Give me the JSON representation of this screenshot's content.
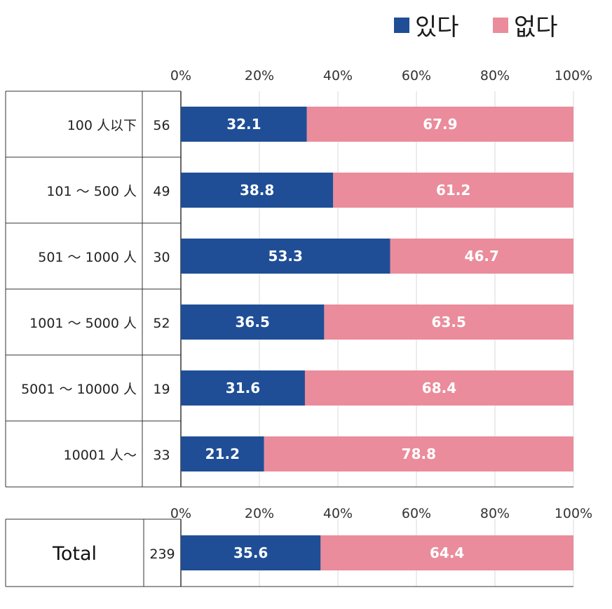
{
  "chart_data": [
    {
      "type": "bar",
      "orientation": "horizontal",
      "stacked": true,
      "legend": [
        "있다",
        "없다"
      ],
      "legend_position": "top-right",
      "xlim": [
        0,
        100
      ],
      "x_ticks": [
        "0%",
        "20%",
        "40%",
        "60%",
        "80%",
        "100%"
      ],
      "categories": [
        "100 人以下",
        "101 〜 500 人",
        "501 〜 1000 人",
        "1001 〜 5000 人",
        "5001 〜 10000 人",
        "10001 人〜"
      ],
      "n": [
        "56",
        "49",
        "30",
        "52",
        "19",
        "33"
      ],
      "series": [
        {
          "name": "있다",
          "values": [
            32.1,
            38.8,
            53.3,
            36.5,
            31.6,
            21.2
          ],
          "labels": [
            "32.1",
            "38.8",
            "53.3",
            "36.5",
            "31.6",
            "21.2"
          ]
        },
        {
          "name": "없다",
          "values": [
            67.9,
            61.2,
            46.7,
            63.5,
            68.4,
            78.8
          ],
          "labels": [
            "67.9",
            "61.2",
            "46.7",
            "63.5",
            "68.4",
            "78.8"
          ]
        }
      ]
    },
    {
      "type": "bar",
      "orientation": "horizontal",
      "stacked": true,
      "xlim": [
        0,
        100
      ],
      "x_ticks": [
        "0%",
        "20%",
        "40%",
        "60%",
        "80%",
        "100%"
      ],
      "categories": [
        "Total"
      ],
      "n": [
        "239"
      ],
      "series": [
        {
          "name": "있다",
          "values": [
            35.6
          ],
          "labels": [
            "35.6"
          ]
        },
        {
          "name": "없다",
          "values": [
            64.4
          ],
          "labels": [
            "64.4"
          ]
        }
      ]
    }
  ],
  "colors": {
    "yes": "#1f4e96",
    "no": "#ea8c9b",
    "grid": "#d9d9d9",
    "border": "#333333"
  }
}
